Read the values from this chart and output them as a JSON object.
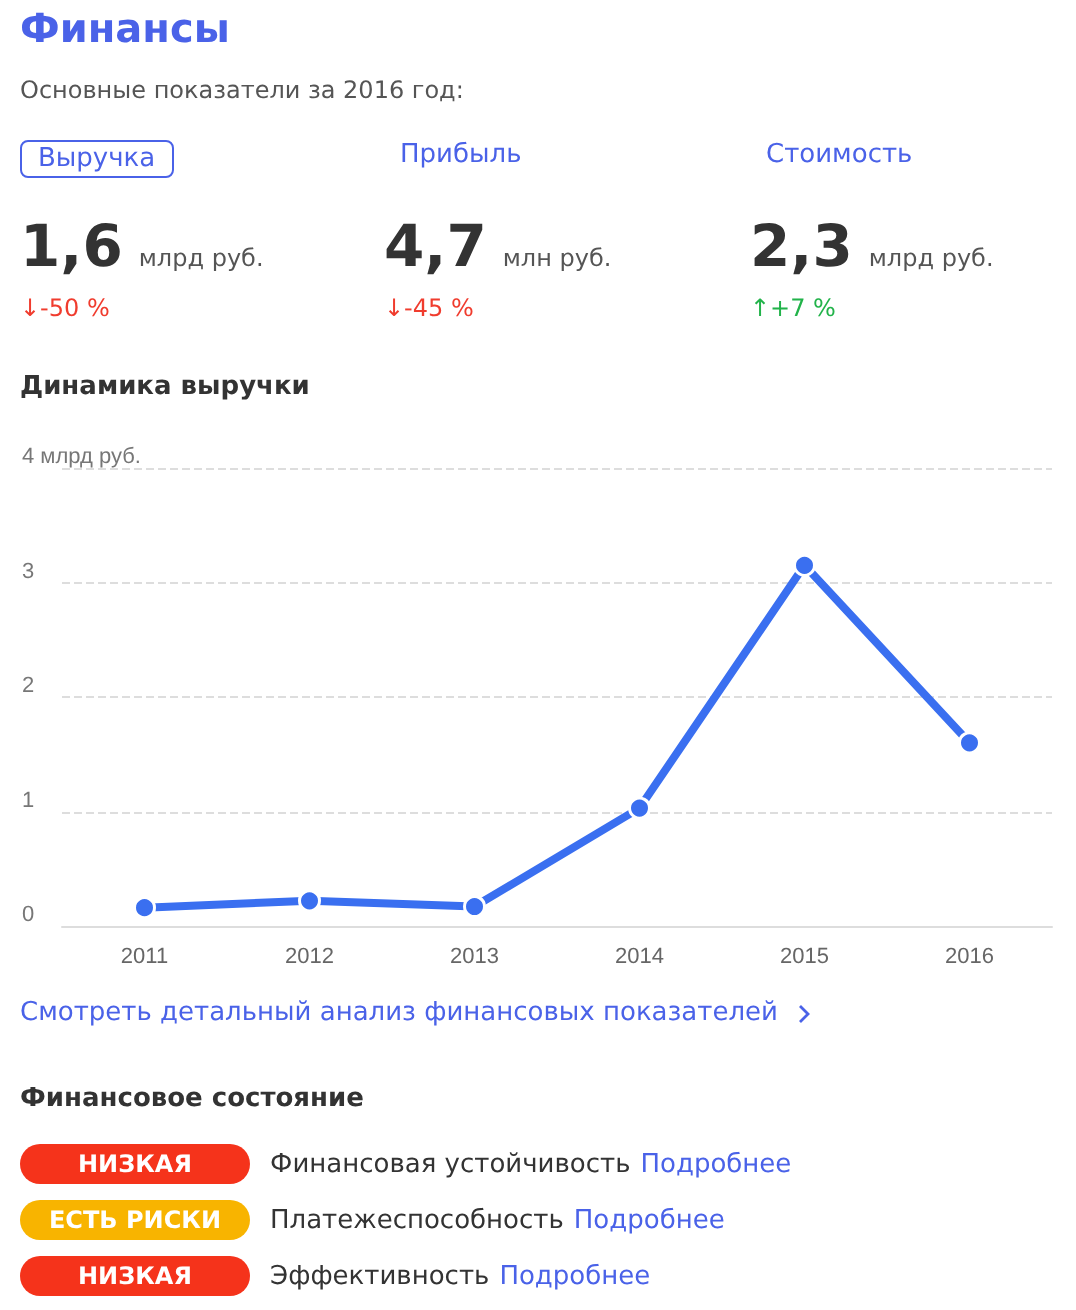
{
  "chart_data": {
    "type": "line",
    "title": "Финансы",
    "subtitle": "Основные показатели за 2016 год:",
    "annotations": [
      "Выручка",
      "Прибыль",
      "Стоимость",
      "1,6",
      "млрд руб.",
      "↓-50 %",
      "4,7",
      "млн руб.",
      "↓-45 %",
      "2,3",
      "млрд руб.",
      "↑+7 %",
      "Динамика выручки",
      "Смотреть детальный анализ финансовых показателей",
      "Финансовое состояние",
      "НИЗКАЯ",
      "Финансовая устойчивость",
      "Подробнее",
      "ЕСТЬ РИСКИ",
      "Платежеспособность",
      "Подробнее",
      "НИЗКАЯ",
      "Эффективность",
      "Подробнее"
    ],
    "categories": [
      "2011",
      "2012",
      "2013",
      "2014",
      "2015",
      "2016"
    ],
    "values": [
      0.16,
      0.22,
      0.17,
      1.03,
      3.15,
      1.6
    ],
    "color": "#3a6ff0",
    "ylim": [
      0,
      4
    ],
    "yticks": [
      0,
      1,
      2,
      3,
      {
        "value": 4,
        "label": "4 млрд руб."
      }
    ],
    "grid": "y",
    "marker": "circle",
    "line_style": "solid"
  }
}
